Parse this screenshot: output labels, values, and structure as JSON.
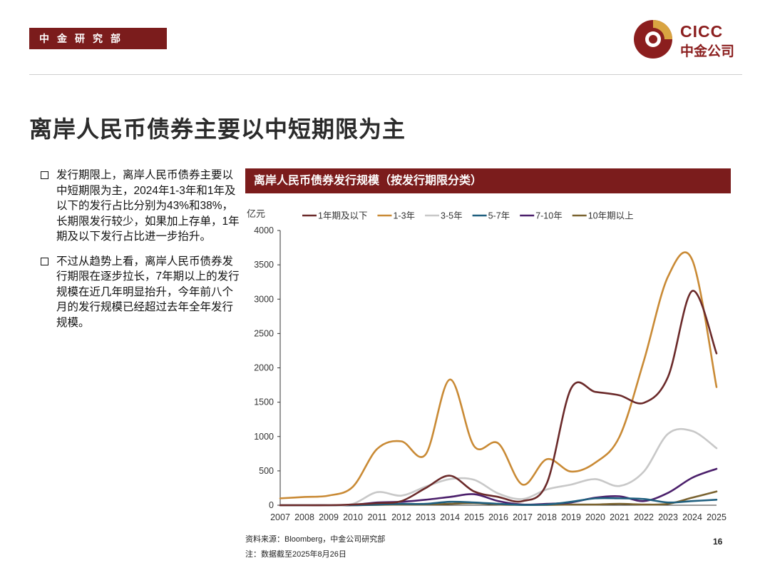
{
  "header": {
    "dept_label": "中金研究部",
    "logo_en": "CICC",
    "logo_cn": "中金公司"
  },
  "title": "离岸人民币债券主要以中短期限为主",
  "bullets": [
    "发行期限上，离岸人民币债券主要以中短期限为主，2024年1-3年和1年及以下的发行占比分别为43%和38%，长期限发行较少，如果加上存单，1年期及以下发行占比进一步抬升。",
    "不过从趋势上看，离岸人民币债券发行期限在逐步拉长，7年期以上的发行规模在近几年明显抬升，今年前八个月的发行规模已经超过去年全年发行规模。"
  ],
  "chart_header": "离岸人民币债券发行规模（按发行期限分类）",
  "footer": {
    "source": "资料来源：Bloomberg，中金公司研究部",
    "note": "注：数据截至2025年8月26日",
    "page": "16"
  },
  "colors": {
    "brand": "#7b1c1c",
    "logo_gold": "#d9a441"
  },
  "chart_data": {
    "type": "line",
    "title": "离岸人民币债券发行规模（按发行期限分类）",
    "ylabel": "亿元",
    "xlabel": "",
    "ylim": [
      0,
      4000
    ],
    "yticks": [
      0,
      500,
      1000,
      1500,
      2000,
      2500,
      3000,
      3500,
      4000
    ],
    "legend_position": "top",
    "categories": [
      "2007",
      "2008",
      "2009",
      "2010",
      "2011",
      "2012",
      "2013",
      "2014",
      "2015",
      "2016",
      "2017",
      "2018",
      "2019",
      "2020",
      "2021",
      "2022",
      "2023",
      "2024",
      "2025"
    ],
    "series": [
      {
        "name": "1年期及以下",
        "color": "#6b2a2a",
        "values": [
          0,
          0,
          0,
          10,
          30,
          60,
          250,
          430,
          200,
          120,
          60,
          320,
          1700,
          1650,
          1600,
          1490,
          1870,
          3120,
          2210
        ]
      },
      {
        "name": "1-3年",
        "color": "#c98a35",
        "values": [
          100,
          120,
          140,
          270,
          820,
          930,
          740,
          1830,
          860,
          900,
          300,
          670,
          490,
          620,
          1000,
          2100,
          3330,
          3570,
          1720
        ]
      },
      {
        "name": "3-5年",
        "color": "#c8c8c8",
        "values": [
          0,
          0,
          0,
          20,
          190,
          140,
          270,
          380,
          370,
          170,
          90,
          230,
          300,
          380,
          280,
          490,
          1040,
          1080,
          830
        ]
      },
      {
        "name": "5-7年",
        "color": "#1f5f7f",
        "values": [
          0,
          0,
          0,
          0,
          10,
          20,
          20,
          50,
          40,
          20,
          5,
          10,
          50,
          100,
          100,
          90,
          40,
          60,
          80
        ]
      },
      {
        "name": "7-10年",
        "color": "#4b1f6b",
        "values": [
          0,
          0,
          0,
          5,
          40,
          50,
          80,
          120,
          160,
          60,
          10,
          20,
          40,
          110,
          130,
          60,
          180,
          400,
          530
        ]
      },
      {
        "name": "10年期以上",
        "color": "#7a6330",
        "values": [
          0,
          0,
          0,
          0,
          5,
          10,
          10,
          20,
          30,
          10,
          5,
          5,
          10,
          10,
          20,
          10,
          20,
          110,
          200
        ]
      }
    ]
  }
}
